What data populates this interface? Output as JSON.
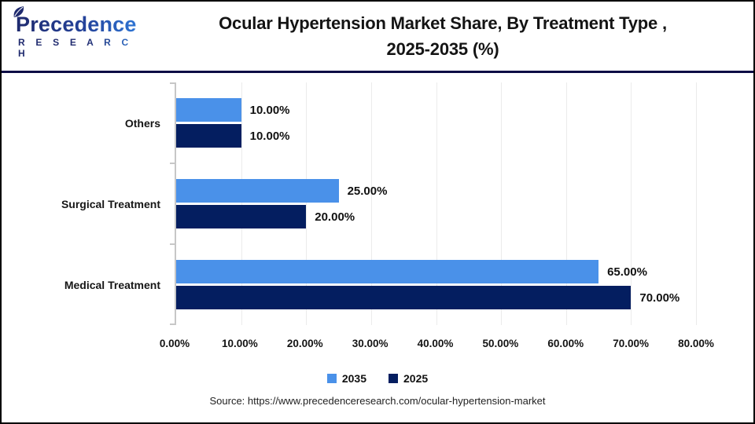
{
  "brand": {
    "name": "Precedence",
    "subtitle": "R E S E A R C H",
    "navy": "#1F2A6E",
    "blue": "#2F7BDB"
  },
  "header": {
    "title_line1": "Ocular Hypertension Market Share, By Treatment Type ,",
    "title_line2": "2025-2035 (%)"
  },
  "chart_data": {
    "type": "bar",
    "orientation": "horizontal",
    "title": "Ocular Hypertension Market Share, By Treatment Type , 2025-2035 (%)",
    "categories": [
      "Others",
      "Surgical Treatment",
      "Medical Treatment"
    ],
    "series": [
      {
        "name": "2035",
        "color": "#4A91E9",
        "values": [
          10,
          25,
          65
        ],
        "labels": [
          "10.00%",
          "25.00%",
          "65.00%"
        ]
      },
      {
        "name": "2025",
        "color": "#041E60",
        "values": [
          10,
          20,
          70
        ],
        "labels": [
          "10.00%",
          "20.00%",
          "70.00%"
        ]
      }
    ],
    "xlim": [
      0,
      80
    ],
    "x_ticks": [
      "0.00%",
      "10.00%",
      "20.00%",
      "30.00%",
      "40.00%",
      "50.00%",
      "60.00%",
      "70.00%",
      "80.00%"
    ],
    "grid": "vertical-on",
    "legend_position": "bottom"
  },
  "legend": {
    "items": [
      {
        "label": "2035",
        "color": "#4A91E9"
      },
      {
        "label": "2025",
        "color": "#041E60"
      }
    ]
  },
  "source": {
    "text": "Source: https://www.precedenceresearch.com/ocular-hypertension-market"
  }
}
